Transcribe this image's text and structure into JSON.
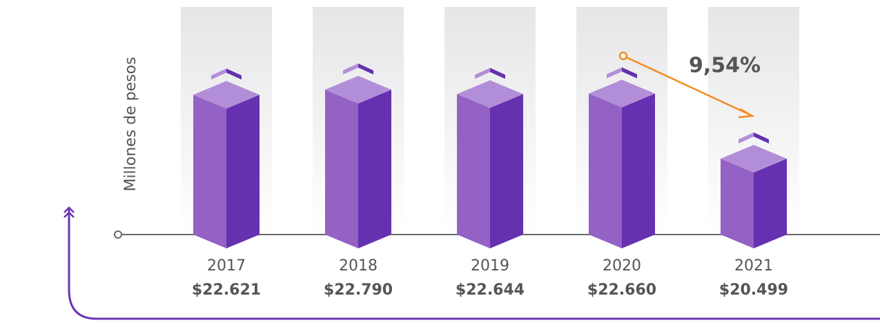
{
  "chart_data": {
    "type": "bar3d",
    "y_label": "Millones de pesos",
    "categories": [
      "2017",
      "2018",
      "2019",
      "2020",
      "2021"
    ],
    "values": [
      22621,
      22790,
      22644,
      22660,
      20499
    ],
    "value_labels": [
      "$22.621",
      "$22.790",
      "$22.644",
      "$22.660",
      "$20.499"
    ],
    "colors": {
      "left": "#9461c4",
      "right": "#6531b0",
      "top": "#b38ed8"
    },
    "annotation": "9,54%"
  }
}
